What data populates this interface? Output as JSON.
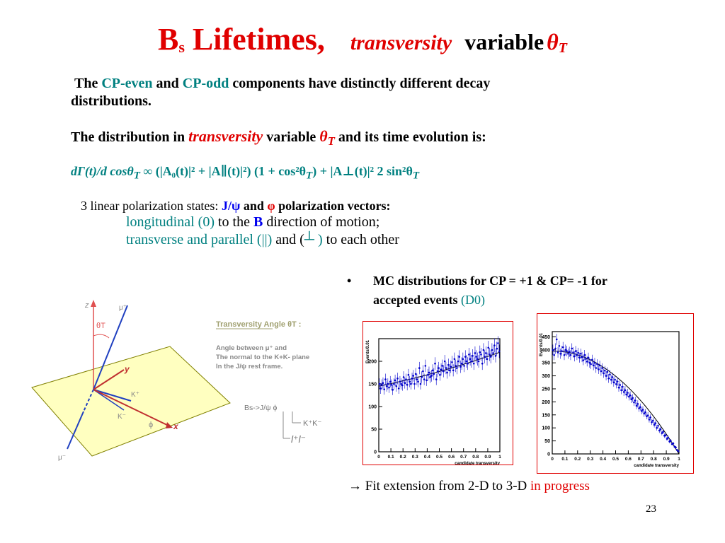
{
  "title": {
    "main": "B",
    "sub": "s",
    "lifetimes": " Lifetimes,",
    "transversity": "transversity",
    "variable": "variable",
    "theta": "θ",
    "theta_sub": "T"
  },
  "intro": {
    "the": "The",
    "cp_even": "CP-even",
    "and": "and",
    "cp_odd": "CP-odd",
    "rest": "components have distinctly different decay",
    "line2": "distributions."
  },
  "dist": {
    "prefix": "The distribution in",
    "transversity": "transversity",
    "variable": "variable",
    "theta": "θ",
    "theta_sub": "T",
    "suffix": "and  its time evolution is:"
  },
  "formula": {
    "lhs": "dΓ(t)/d cosθ",
    "lhs_sub": "T",
    "rhs": "∞ (|A₀(t)|² +  |A∥(t)|²) (1 + cos²θ",
    "rhs_sub": "T",
    "rhs2": ") + |A⊥(t)|² 2 sin²θ",
    "rhs2_sub": "T"
  },
  "polarization": {
    "line1_prefix": "3 linear polarization states:",
    "jpsi": "J/ψ",
    "and": "and",
    "phi": "φ",
    "line1_suffix": "polarization vectors:",
    "line2_teal": "longitudinal (0)",
    "line2_mid": "to the",
    "line2_b": "B",
    "line2_suffix": "direction of motion;",
    "line3_teal": "transverse and parallel (||)",
    "line3_mid": "and (",
    "line3_perp": "┴",
    "line3_close": ")",
    "line3_suffix": "to each other"
  },
  "bullet": {
    "marker": "•",
    "line1": "MC  distributions for CP = +1  & CP= -1 for",
    "line2": "accepted events",
    "d0": "(D0)"
  },
  "diagram": {
    "z_label": "z",
    "mu_plus": "μ⁺",
    "theta_label": "θT",
    "y_label": "y",
    "kplus": "K⁺",
    "kminus": "K⁻",
    "phi": "ϕ",
    "x_label": "x",
    "mu_minus": "μ⁻",
    "angle_title": "Transversity Angle θT :",
    "angle_desc1": "Angle between  μ⁺ and",
    "angle_desc2": "The normal to the K+K- plane",
    "angle_desc3": "In the J/ψ rest frame.",
    "decay_bs": "Bs->J/ψ  ϕ",
    "decay_kk": "K⁺K⁻",
    "decay_ll": "l⁺l⁻"
  },
  "footer": {
    "arrow": "→",
    "text": "Fit extension from   2-D to 3-D",
    "progress": "in progress",
    "page": "23"
  },
  "colors": {
    "red": "#e00000",
    "teal": "#008080",
    "blue": "#0000ee",
    "navy": "#000080",
    "plane": "#ffffc0"
  },
  "chart_data": [
    {
      "type": "scatter",
      "title": "",
      "xlabel": "candidate transversity",
      "ylabel": "Events/0.01",
      "xlim": [
        0,
        1
      ],
      "ylim": [
        0,
        250
      ],
      "xticks": [
        "0",
        "0.1",
        "0.2",
        "0.3",
        "0.4",
        "0.5",
        "0.6",
        "0.7",
        "0.8",
        "0.9",
        "1"
      ],
      "yticks": [
        "0",
        "50",
        "100",
        "150",
        "200"
      ],
      "fit": "rising curve from ~145 at 0 to ~220 at 1",
      "x": [
        0.005,
        0.015,
        0.025,
        0.035,
        0.045,
        0.055,
        0.065,
        0.075,
        0.085,
        0.095,
        0.105,
        0.115,
        0.125,
        0.135,
        0.145,
        0.155,
        0.165,
        0.175,
        0.185,
        0.195,
        0.205,
        0.215,
        0.225,
        0.235,
        0.245,
        0.255,
        0.265,
        0.275,
        0.285,
        0.295,
        0.305,
        0.315,
        0.325,
        0.335,
        0.345,
        0.355,
        0.365,
        0.375,
        0.385,
        0.395,
        0.405,
        0.415,
        0.425,
        0.435,
        0.445,
        0.455,
        0.465,
        0.475,
        0.485,
        0.495,
        0.505,
        0.515,
        0.525,
        0.535,
        0.545,
        0.555,
        0.565,
        0.575,
        0.585,
        0.595,
        0.605,
        0.615,
        0.625,
        0.635,
        0.645,
        0.655,
        0.665,
        0.675,
        0.685,
        0.695,
        0.705,
        0.715,
        0.725,
        0.735,
        0.745,
        0.755,
        0.765,
        0.775,
        0.785,
        0.795,
        0.805,
        0.815,
        0.825,
        0.835,
        0.845,
        0.855,
        0.865,
        0.875,
        0.885,
        0.895,
        0.905,
        0.915,
        0.925,
        0.935,
        0.945,
        0.955,
        0.965,
        0.975,
        0.985,
        0.995
      ],
      "y": [
        150,
        140,
        148,
        152,
        138,
        160,
        145,
        150,
        142,
        155,
        148,
        137,
        150,
        158,
        145,
        162,
        140,
        155,
        150,
        147,
        165,
        152,
        160,
        148,
        170,
        155,
        150,
        162,
        168,
        150,
        172,
        160,
        155,
        185,
        150,
        165,
        178,
        160,
        190,
        158,
        170,
        175,
        165,
        168,
        180,
        172,
        195,
        160,
        178,
        185,
        170,
        182,
        190,
        178,
        200,
        185,
        175,
        192,
        180,
        188,
        198,
        180,
        205,
        190,
        185,
        200,
        210,
        188,
        195,
        205,
        190,
        210,
        200,
        195,
        215,
        205,
        200,
        212,
        195,
        218,
        210,
        205,
        200,
        220,
        215,
        195,
        225,
        210,
        218,
        205,
        230,
        215,
        210,
        225,
        218,
        235,
        212,
        228,
        240,
        222
      ]
    },
    {
      "type": "scatter",
      "title": "",
      "xlabel": "candidate transversity",
      "ylabel": "Events/0.01",
      "xlim": [
        0,
        1
      ],
      "ylim": [
        0,
        470
      ],
      "xticks": [
        "0",
        "0.1",
        "0.2",
        "0.3",
        "0.4",
        "0.5",
        "0.6",
        "0.7",
        "0.8",
        "0.9",
        "1"
      ],
      "yticks": [
        "0",
        "50",
        "100",
        "150",
        "200",
        "250",
        "300",
        "350",
        "400",
        "450"
      ],
      "fit": "falling curve from ~395 at 0 to ~0 at 1",
      "x": [
        0.005,
        0.015,
        0.025,
        0.035,
        0.045,
        0.055,
        0.065,
        0.075,
        0.085,
        0.095,
        0.105,
        0.115,
        0.125,
        0.135,
        0.145,
        0.155,
        0.165,
        0.175,
        0.185,
        0.195,
        0.205,
        0.215,
        0.225,
        0.235,
        0.245,
        0.255,
        0.265,
        0.275,
        0.285,
        0.295,
        0.305,
        0.315,
        0.325,
        0.335,
        0.345,
        0.355,
        0.365,
        0.375,
        0.385,
        0.395,
        0.405,
        0.415,
        0.425,
        0.435,
        0.445,
        0.455,
        0.465,
        0.475,
        0.485,
        0.495,
        0.505,
        0.515,
        0.525,
        0.535,
        0.545,
        0.555,
        0.565,
        0.575,
        0.585,
        0.595,
        0.605,
        0.615,
        0.625,
        0.635,
        0.645,
        0.655,
        0.665,
        0.675,
        0.685,
        0.695,
        0.705,
        0.715,
        0.725,
        0.735,
        0.745,
        0.755,
        0.765,
        0.775,
        0.785,
        0.795,
        0.805,
        0.815,
        0.825,
        0.835,
        0.845,
        0.855,
        0.865,
        0.875,
        0.885,
        0.895,
        0.905,
        0.915,
        0.925,
        0.935,
        0.945,
        0.955,
        0.965,
        0.975,
        0.985,
        0.995
      ],
      "y": [
        400,
        380,
        405,
        440,
        390,
        415,
        385,
        395,
        410,
        380,
        400,
        395,
        385,
        392,
        380,
        405,
        390,
        375,
        395,
        380,
        388,
        370,
        385,
        372,
        360,
        380,
        365,
        355,
        370,
        350,
        345,
        362,
        340,
        350,
        330,
        345,
        325,
        340,
        318,
        330,
        310,
        320,
        300,
        315,
        290,
        305,
        285,
        295,
        275,
        285,
        268,
        278,
        255,
        265,
        245,
        258,
        238,
        245,
        228,
        235,
        220,
        225,
        210,
        215,
        198,
        205,
        185,
        192,
        175,
        180,
        165,
        170,
        155,
        160,
        145,
        148,
        132,
        140,
        122,
        128,
        112,
        118,
        100,
        108,
        90,
        95,
        80,
        85,
        70,
        72,
        58,
        62,
        48,
        50,
        38,
        40,
        28,
        25,
        15,
        10
      ]
    }
  ]
}
